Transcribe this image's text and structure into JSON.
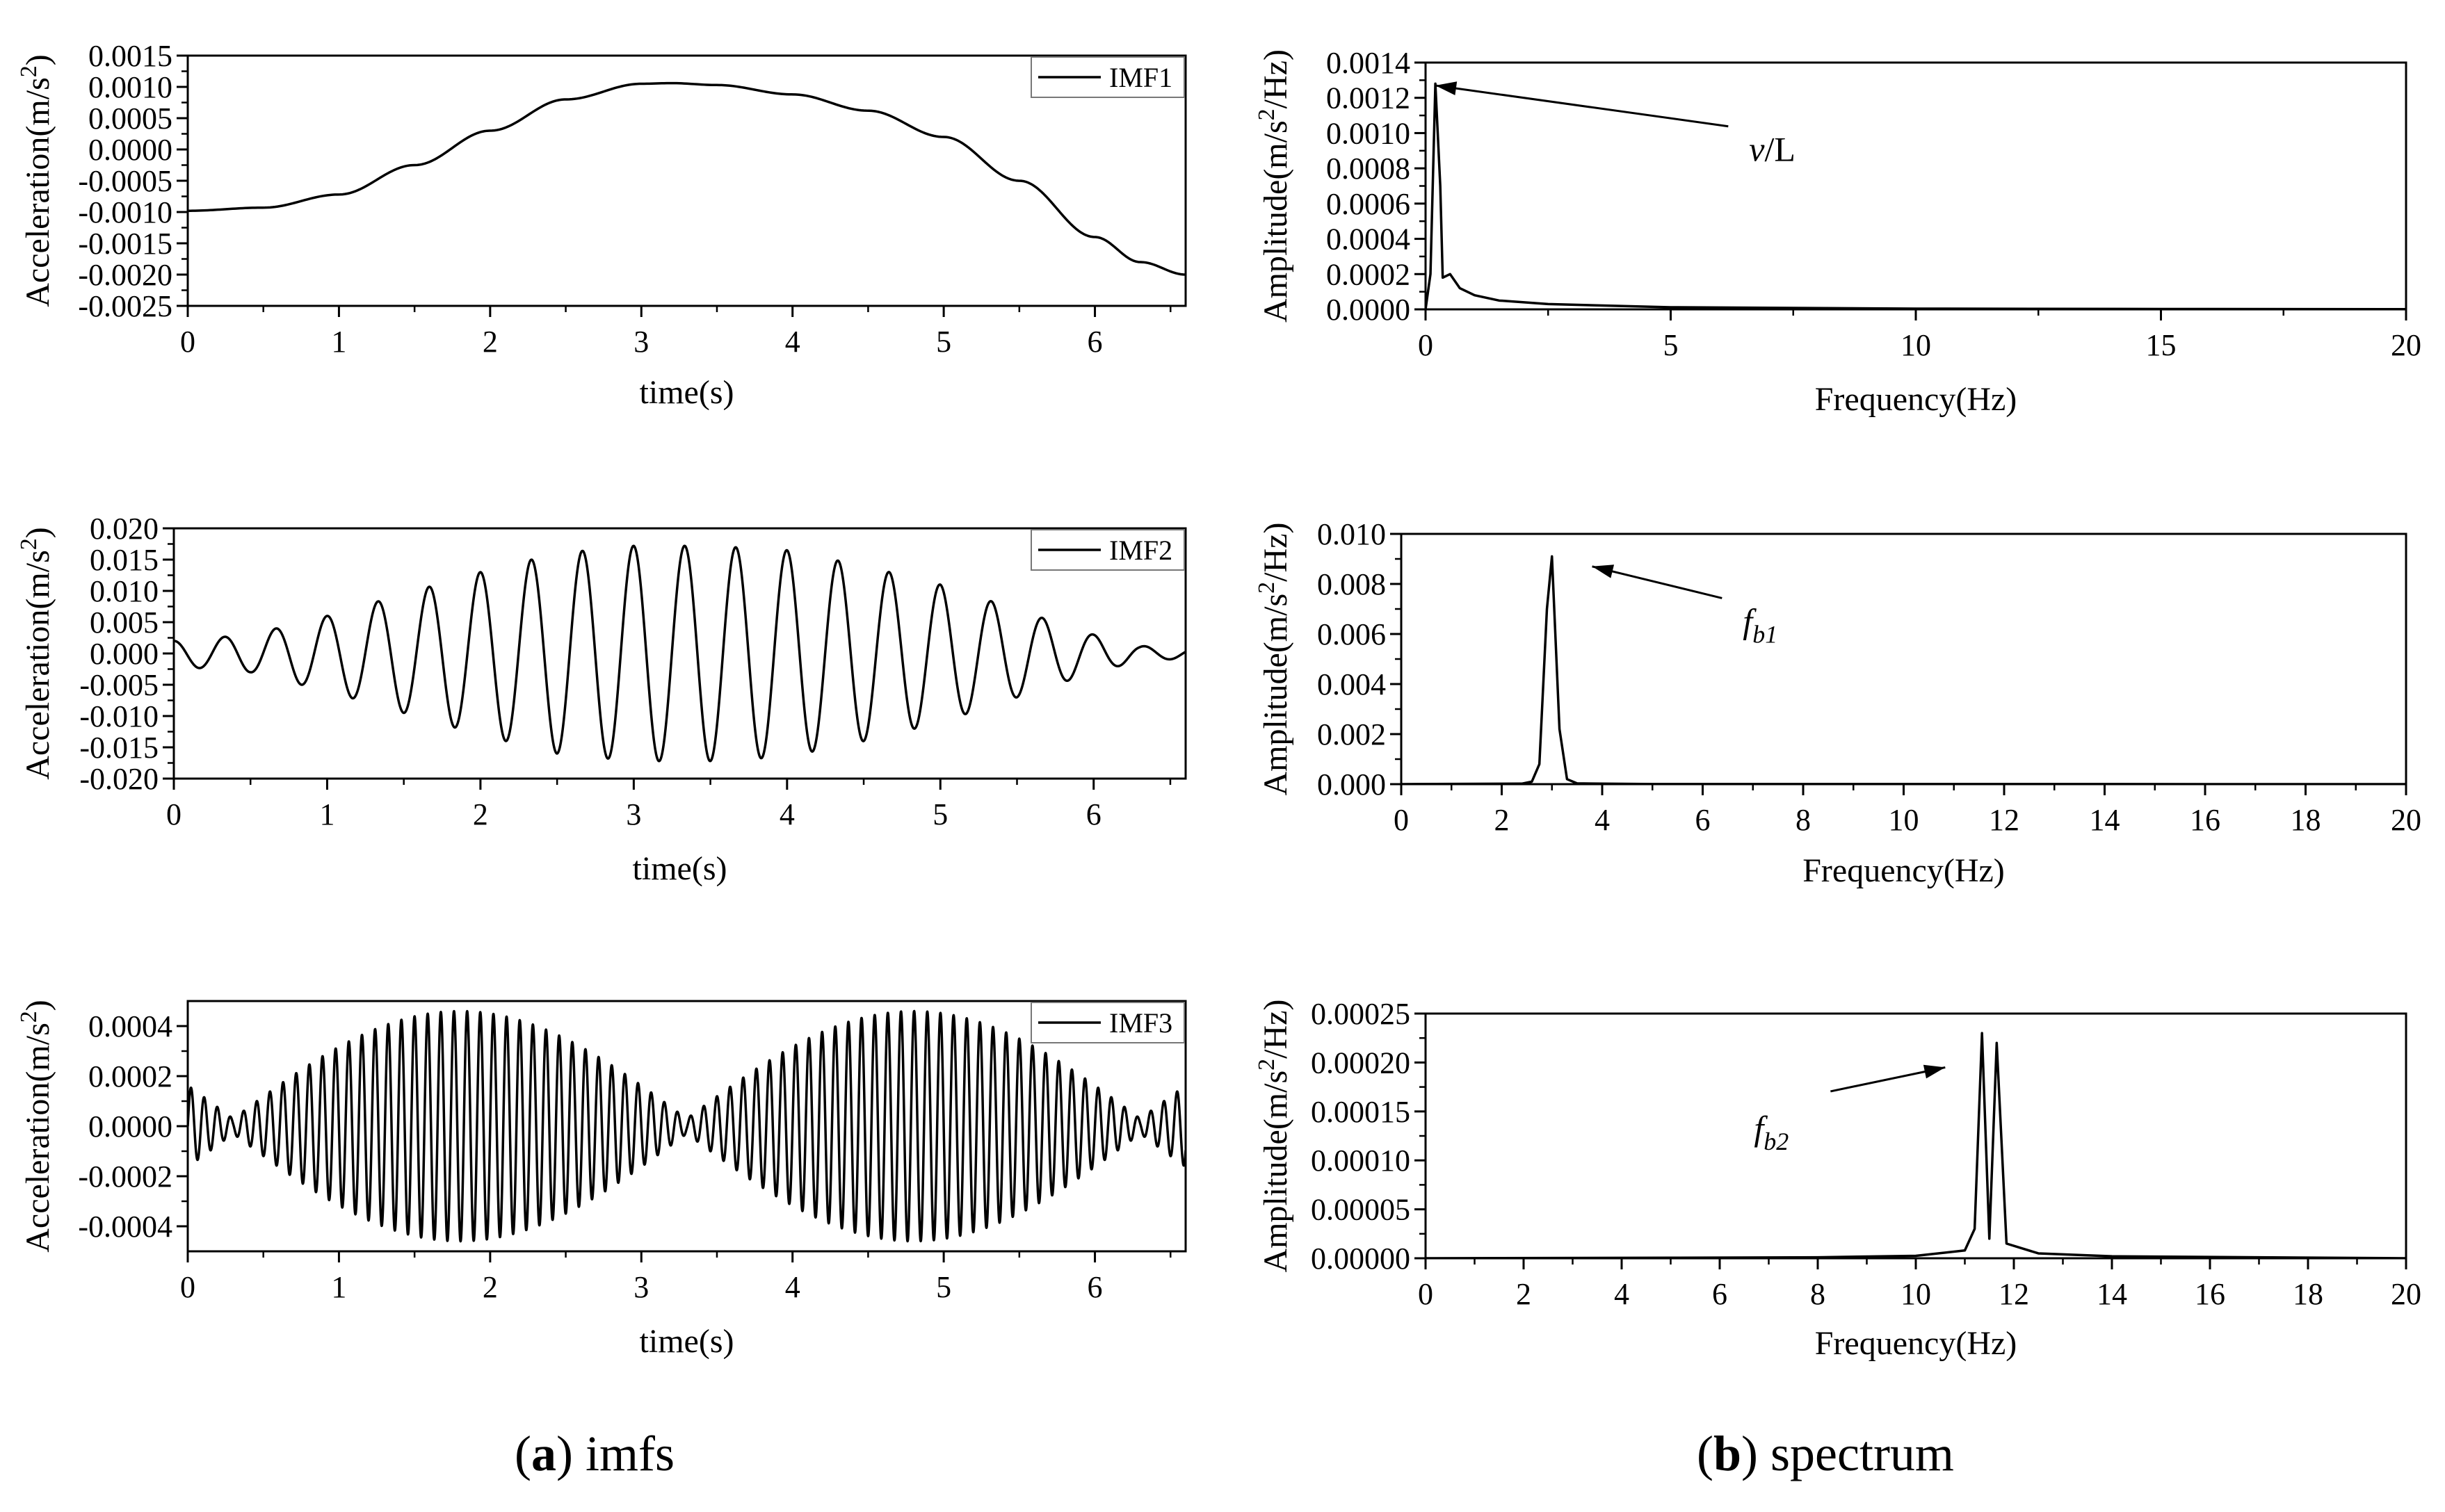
{
  "captions": {
    "a": {
      "letter": "a",
      "text": "imfs"
    },
    "b": {
      "letter": "b",
      "text": "spectrum"
    }
  },
  "colors": {
    "line": "#000000",
    "axis": "#000000",
    "background": "#ffffff"
  },
  "chart_data": [
    {
      "id": "imf1",
      "type": "line",
      "xlabel": "time(s)",
      "ylabel": "Acceleration(m/s2)",
      "xlim": [
        0,
        6.6
      ],
      "ylim": [
        -0.0025,
        0.0015
      ],
      "xticks": [
        0,
        1,
        2,
        3,
        4,
        5,
        6
      ],
      "xtick_labels": [
        "0",
        "1",
        "2",
        "3",
        "4",
        "5",
        "6"
      ],
      "yticks": [
        -0.0025,
        -0.002,
        -0.0015,
        -0.001,
        -0.0005,
        0,
        0.0005,
        0.001,
        0.0015
      ],
      "ytick_labels": [
        "-0.0025",
        "-0.0020",
        "-0.0015",
        "-0.0010",
        "-0.0005",
        "0.0000",
        "0.0005",
        "0.0010",
        "0.0015"
      ],
      "legend": "IMF1",
      "legend_position": "top-right",
      "series": [
        {
          "name": "IMF1",
          "kind": "keypoints",
          "points": [
            [
              0,
              -0.00098
            ],
            [
              0.5,
              -0.00093
            ],
            [
              1.0,
              -0.00072
            ],
            [
              1.5,
              -0.00025
            ],
            [
              2.0,
              0.0003
            ],
            [
              2.5,
              0.0008
            ],
            [
              3.0,
              0.00105
            ],
            [
              3.2,
              0.00106
            ],
            [
              3.5,
              0.00103
            ],
            [
              4.0,
              0.00088
            ],
            [
              4.5,
              0.00062
            ],
            [
              5.0,
              0.0002
            ],
            [
              5.5,
              -0.0005
            ],
            [
              6.0,
              -0.0014
            ],
            [
              6.3,
              -0.0018
            ],
            [
              6.6,
              -0.002
            ]
          ]
        }
      ]
    },
    {
      "id": "imf2",
      "type": "line",
      "xlabel": "time(s)",
      "ylabel": "Acceleration(m/s2)",
      "xlim": [
        0,
        6.6
      ],
      "ylim": [
        -0.02,
        0.02
      ],
      "xticks": [
        0,
        1,
        2,
        3,
        4,
        5,
        6
      ],
      "xtick_labels": [
        "0",
        "1",
        "2",
        "3",
        "4",
        "5",
        "6"
      ],
      "yticks": [
        -0.02,
        -0.015,
        -0.01,
        -0.005,
        0,
        0.005,
        0.01,
        0.015,
        0.02
      ],
      "ytick_labels": [
        "-0.020",
        "-0.015",
        "-0.010",
        "-0.005",
        "0.000",
        "0.005",
        "0.010",
        "0.015",
        "0.020"
      ],
      "legend": "IMF2",
      "legend_position": "top-right",
      "series": [
        {
          "name": "IMF2",
          "kind": "modulated",
          "frequency_hz": 3.0,
          "phase": 1.6,
          "envelope": [
            [
              0,
              0.002
            ],
            [
              0.5,
              0.003
            ],
            [
              1.0,
              0.006
            ],
            [
              1.5,
              0.0095
            ],
            [
              2.0,
              0.013
            ],
            [
              2.5,
              0.016
            ],
            [
              3.0,
              0.0172
            ],
            [
              3.5,
              0.0172
            ],
            [
              4.0,
              0.0165
            ],
            [
              4.5,
              0.014
            ],
            [
              5.0,
              0.011
            ],
            [
              5.5,
              0.007
            ],
            [
              6.0,
              0.003
            ],
            [
              6.3,
              0.0012
            ],
            [
              6.6,
              0.0008
            ]
          ]
        }
      ]
    },
    {
      "id": "imf3",
      "type": "line",
      "xlabel": "time(s)",
      "ylabel": "Acceleration(m/s2)",
      "xlim": [
        0,
        6.6
      ],
      "ylim": [
        -0.0005,
        0.0005
      ],
      "xticks": [
        0,
        1,
        2,
        3,
        4,
        5,
        6
      ],
      "xtick_labels": [
        "0",
        "1",
        "2",
        "3",
        "4",
        "5",
        "6"
      ],
      "yticks": [
        -0.0004,
        -0.0002,
        0,
        0.0002,
        0.0004
      ],
      "ytick_labels": [
        "-0.0004",
        "-0.0002",
        "0.0000",
        "0.0002",
        "0.0004"
      ],
      "legend": "IMF3",
      "legend_position": "top-right",
      "series": [
        {
          "name": "IMF3",
          "kind": "beat",
          "frequency_hz": 11.5,
          "amplitude": 0.00046,
          "beat_period_s": 6.0,
          "beat_offset_s": 0.3,
          "min_amplitude": 3e-05
        }
      ]
    },
    {
      "id": "spec1",
      "type": "line",
      "xlabel": "Frequency(Hz)",
      "ylabel": "Amplitude(m/s2/Hz)",
      "xlim": [
        0,
        20
      ],
      "ylim": [
        0,
        0.0014
      ],
      "xticks": [
        0,
        5,
        10,
        15,
        20
      ],
      "xtick_labels": [
        "0",
        "5",
        "10",
        "15",
        "20"
      ],
      "yticks": [
        0,
        0.0002,
        0.0004,
        0.0006,
        0.0008,
        0.001,
        0.0012,
        0.0014
      ],
      "ytick_labels": [
        "0.0000",
        "0.0002",
        "0.0004",
        "0.0006",
        "0.0008",
        "0.0010",
        "0.0012",
        "0.0014"
      ],
      "annotation": {
        "text": "v/L",
        "italic_part": "v",
        "normal_part": "/L",
        "points_to": [
          0.2,
          0.00127
        ],
        "text_at": [
          6.6,
          0.00092
        ]
      },
      "series": [
        {
          "name": "",
          "kind": "keypoints",
          "points": [
            [
              0,
              0
            ],
            [
              0.1,
              0.0002
            ],
            [
              0.2,
              0.00128
            ],
            [
              0.3,
              0.0007
            ],
            [
              0.35,
              0.00018
            ],
            [
              0.5,
              0.0002
            ],
            [
              0.7,
              0.00012
            ],
            [
              1.0,
              8e-05
            ],
            [
              1.5,
              5e-05
            ],
            [
              2.5,
              3e-05
            ],
            [
              5,
              1.2e-05
            ],
            [
              10,
              4e-06
            ],
            [
              15,
              2e-06
            ],
            [
              20,
              1e-06
            ]
          ]
        }
      ]
    },
    {
      "id": "spec2",
      "type": "line",
      "xlabel": "Frequency(Hz)",
      "ylabel": "Amplitude(m/s2/Hz)",
      "xlim": [
        0,
        20
      ],
      "ylim": [
        0,
        0.01
      ],
      "xticks": [
        0,
        2,
        4,
        6,
        8,
        10,
        12,
        14,
        16,
        18,
        20
      ],
      "xtick_labels": [
        "0",
        "2",
        "4",
        "6",
        "8",
        "10",
        "12",
        "14",
        "16",
        "18",
        "20"
      ],
      "yticks": [
        0,
        0.002,
        0.004,
        0.006,
        0.008,
        0.01
      ],
      "ytick_labels": [
        "0.000",
        "0.002",
        "0.004",
        "0.006",
        "0.008",
        "0.010"
      ],
      "annotation": {
        "text": "fb1",
        "base": "f",
        "sub": "b1",
        "points_to": [
          3.8,
          0.0087
        ],
        "text_at": [
          6.8,
          0.0066
        ]
      },
      "series": [
        {
          "name": "",
          "kind": "keypoints",
          "points": [
            [
              0,
              0
            ],
            [
              2.4,
              2e-05
            ],
            [
              2.6,
              0.0001
            ],
            [
              2.75,
              0.0008
            ],
            [
              2.9,
              0.007
            ],
            [
              3.0,
              0.0091
            ],
            [
              3.15,
              0.0022
            ],
            [
              3.3,
              0.0002
            ],
            [
              3.5,
              3e-05
            ],
            [
              5,
              5e-06
            ],
            [
              20,
              0
            ]
          ]
        }
      ]
    },
    {
      "id": "spec3",
      "type": "line",
      "xlabel": "Frequency(Hz)",
      "ylabel": "Amplitude(m/s2/Hz)",
      "xlim": [
        0,
        20
      ],
      "ylim": [
        0,
        0.00025
      ],
      "xticks": [
        0,
        2,
        4,
        6,
        8,
        10,
        12,
        14,
        16,
        18,
        20
      ],
      "xtick_labels": [
        "0",
        "2",
        "4",
        "6",
        "8",
        "10",
        "12",
        "14",
        "16",
        "18",
        "20"
      ],
      "yticks": [
        0,
        5e-05,
        0.0001,
        0.00015,
        0.0002,
        0.00025
      ],
      "ytick_labels": [
        "0.00000",
        "0.00005",
        "0.00010",
        "0.00015",
        "0.00020",
        "0.00025"
      ],
      "annotation": {
        "text": "fb2",
        "base": "f",
        "sub": "b2",
        "points_to": [
          10.6,
          0.000195
        ],
        "text_at": [
          6.7,
          0.000135
        ]
      },
      "series": [
        {
          "name": "",
          "kind": "keypoints",
          "points": [
            [
              0,
              0
            ],
            [
              5,
              5e-07
            ],
            [
              8,
              1e-06
            ],
            [
              10,
              2.5e-06
            ],
            [
              11.0,
              8e-06
            ],
            [
              11.2,
              3e-05
            ],
            [
              11.35,
              0.00023
            ],
            [
              11.5,
              2e-05
            ],
            [
              11.65,
              0.00022
            ],
            [
              11.85,
              1.5e-05
            ],
            [
              12.5,
              5e-06
            ],
            [
              14,
              2e-06
            ],
            [
              20,
              0
            ]
          ]
        }
      ]
    }
  ]
}
